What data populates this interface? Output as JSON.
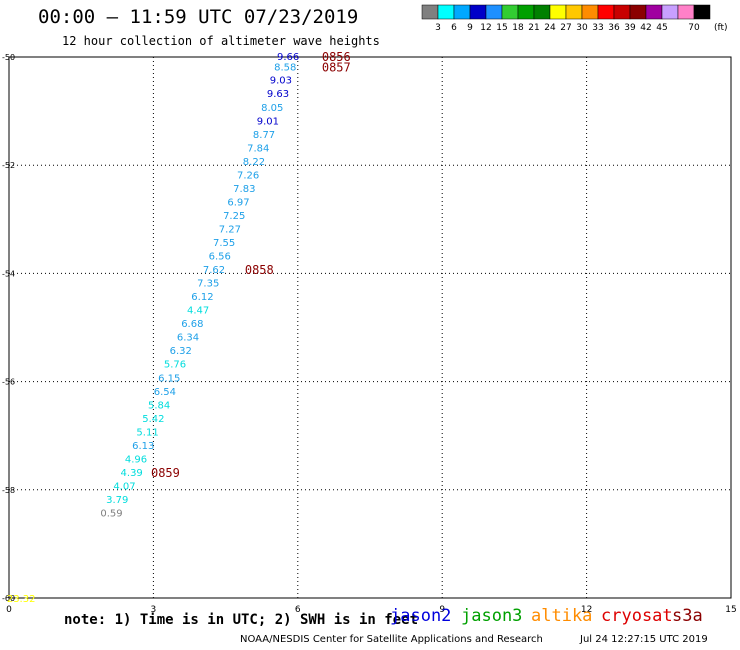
{
  "header": {
    "title": "00:00 — 11:59 UTC 07/23/2019",
    "subtitle": "12 hour collection of altimeter wave heights"
  },
  "legend": {
    "unit": "(ft)",
    "colors": [
      "#808080",
      "#00ffff",
      "#00a8ff",
      "#0000c8",
      "#1e90ff",
      "#32cd32",
      "#00a000",
      "#008000",
      "#ffff00",
      "#ffc800",
      "#ff8c00",
      "#ff0000",
      "#c80000",
      "#8b0000",
      "#a000a0",
      "#c8a0ff",
      "#ff80c8",
      "#000000"
    ],
    "labels": [
      "3",
      "6",
      "9",
      "12",
      "15",
      "18",
      "21",
      "24",
      "27",
      "30",
      "33",
      "36",
      "39",
      "42",
      "45",
      "70"
    ]
  },
  "note": "note: 1) Time is in UTC; 2) SWH is in feet",
  "satellites": [
    {
      "name": "jason2",
      "color": "#0000dd"
    },
    {
      "name": "jason3",
      "color": "#00a000"
    },
    {
      "name": "altika",
      "color": "#ff8c00"
    },
    {
      "name": "cryosat",
      "color": "#dd0000"
    },
    {
      "name": "s3a",
      "color": "#8b0000"
    }
  ],
  "footer": {
    "agency": "NOAA/NESDIS Center for Satellite Applications and Research",
    "timestamp": "Jul 24 12:27:15 UTC 2019"
  },
  "chart_data": {
    "type": "scatter",
    "xlim": [
      0,
      15
    ],
    "ylim": [
      -60,
      -50
    ],
    "x_ticks": [
      "0",
      "3",
      "6",
      "9",
      "12",
      "15"
    ],
    "y_ticks": [
      "-50",
      "-52",
      "-54",
      "-56",
      "-58",
      "-60"
    ],
    "grid": "dotted",
    "points": [
      {
        "x": 6.03,
        "y": -49.98,
        "label": "9.66",
        "color": "#0000cc"
      },
      {
        "x": 5.97,
        "y": -50.18,
        "label": "8.58",
        "color": "#1ea0e8"
      },
      {
        "x": 5.88,
        "y": -50.42,
        "label": "9.03",
        "color": "#0000cc"
      },
      {
        "x": 5.82,
        "y": -50.67,
        "label": "9.63",
        "color": "#0000cc"
      },
      {
        "x": 5.7,
        "y": -50.92,
        "label": "8.05",
        "color": "#1ea0e8"
      },
      {
        "x": 5.61,
        "y": -51.17,
        "label": "9.01",
        "color": "#0000cc"
      },
      {
        "x": 5.53,
        "y": -51.42,
        "label": "8.77",
        "color": "#1ea0e8"
      },
      {
        "x": 5.41,
        "y": -51.67,
        "label": "7.84",
        "color": "#1ea0e8"
      },
      {
        "x": 5.32,
        "y": -51.92,
        "label": "8.22",
        "color": "#1ea0e8"
      },
      {
        "x": 5.2,
        "y": -52.17,
        "label": "7.26",
        "color": "#1ea0e8"
      },
      {
        "x": 5.12,
        "y": -52.42,
        "label": "7.83",
        "color": "#1ea0e8"
      },
      {
        "x": 5.0,
        "y": -52.67,
        "label": "6.97",
        "color": "#1ea0e8"
      },
      {
        "x": 4.91,
        "y": -52.92,
        "label": "7.25",
        "color": "#1ea0e8"
      },
      {
        "x": 4.82,
        "y": -53.17,
        "label": "7.27",
        "color": "#1ea0e8"
      },
      {
        "x": 4.7,
        "y": -53.42,
        "label": "7.55",
        "color": "#1ea0e8"
      },
      {
        "x": 4.61,
        "y": -53.67,
        "label": "6.56",
        "color": "#1ea0e8"
      },
      {
        "x": 4.49,
        "y": -53.92,
        "label": "7.62",
        "color": "#1ea0e8"
      },
      {
        "x": 4.37,
        "y": -54.17,
        "label": "7.35",
        "color": "#1ea0e8"
      },
      {
        "x": 4.25,
        "y": -54.42,
        "label": "6.12",
        "color": "#1ea0e8"
      },
      {
        "x": 4.16,
        "y": -54.67,
        "label": "4.47",
        "color": "#00dddd"
      },
      {
        "x": 4.04,
        "y": -54.92,
        "label": "6.68",
        "color": "#1ea0e8"
      },
      {
        "x": 3.95,
        "y": -55.17,
        "label": "6.34",
        "color": "#1ea0e8"
      },
      {
        "x": 3.8,
        "y": -55.42,
        "label": "6.32",
        "color": "#1ea0e8"
      },
      {
        "x": 3.68,
        "y": -55.67,
        "label": "5.76",
        "color": "#00dddd"
      },
      {
        "x": 3.56,
        "y": -55.92,
        "label": "6.15",
        "color": "#1ea0e8"
      },
      {
        "x": 3.47,
        "y": -56.17,
        "label": "6.54",
        "color": "#1ea0e8"
      },
      {
        "x": 3.35,
        "y": -56.42,
        "label": "5.84",
        "color": "#00dddd"
      },
      {
        "x": 3.23,
        "y": -56.67,
        "label": "5.42",
        "color": "#00dddd"
      },
      {
        "x": 3.11,
        "y": -56.92,
        "label": "5.11",
        "color": "#00dddd"
      },
      {
        "x": 3.02,
        "y": -57.17,
        "label": "6.13",
        "color": "#1ea0e8"
      },
      {
        "x": 2.87,
        "y": -57.42,
        "label": "4.96",
        "color": "#00dddd"
      },
      {
        "x": 2.78,
        "y": -57.67,
        "label": "4.39",
        "color": "#00dddd"
      },
      {
        "x": 2.63,
        "y": -57.92,
        "label": "4.07",
        "color": "#00dddd"
      },
      {
        "x": 2.48,
        "y": -58.17,
        "label": "3.79",
        "color": "#00dddd"
      },
      {
        "x": 2.36,
        "y": -58.42,
        "label": "0.59",
        "color": "#808080"
      },
      {
        "x": 0.55,
        "y": -60.0,
        "label": "23.32",
        "color": "#ffff00"
      }
    ],
    "annotations": [
      {
        "x": 6.5,
        "y": -49.98,
        "text": "0856",
        "color": "#8b0000"
      },
      {
        "x": 6.5,
        "y": -50.18,
        "text": "0857",
        "color": "#8b0000"
      },
      {
        "x": 4.9,
        "y": -53.92,
        "text": "0858",
        "color": "#8b0000"
      },
      {
        "x": 2.95,
        "y": -57.67,
        "text": "0859",
        "color": "#8b0000"
      }
    ]
  }
}
